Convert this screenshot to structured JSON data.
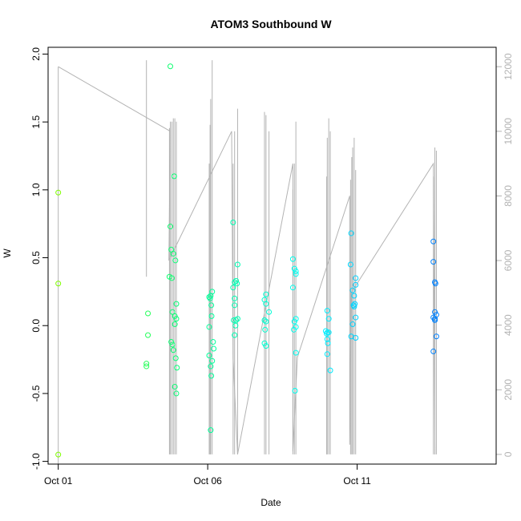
{
  "chart_data": {
    "type": "scatter",
    "title": "ATOM3 Southbound W",
    "xlabel": "Date",
    "ylabel": "W",
    "x_ticks": [
      "Oct 01",
      "Oct 06",
      "Oct 11"
    ],
    "x_ticks_day": [
      1,
      6,
      11
    ],
    "xlim_day": [
      0.66,
      15.65
    ],
    "ylim": [
      -1.02,
      2.05
    ],
    "y_ticks": [
      -1.0,
      -0.5,
      0.0,
      0.5,
      1.0,
      1.5,
      2.0
    ],
    "y_tick_labels": [
      "-1.0",
      "-0.5",
      "0.0",
      "0.5",
      "1.0",
      "1.5",
      "2.0"
    ],
    "right_axis": {
      "ylim": [
        -300,
        12600
      ],
      "ticks": [
        0,
        2000,
        4000,
        6000,
        8000,
        10000,
        12000
      ],
      "tick_labels": [
        "0",
        "2000",
        "4000",
        "6000",
        "8000",
        "10000",
        "12000"
      ],
      "color": "#b3b3b3"
    },
    "grid": false,
    "legend": "none",
    "point_color_scale": [
      "#7fff00",
      "#00ff7f",
      "#00ffff",
      "#0080ff"
    ],
    "points": [
      [
        1.0,
        0.98
      ],
      [
        1.0,
        0.31
      ],
      [
        1.0,
        -0.95
      ],
      [
        4.0,
        0.09
      ],
      [
        4.0,
        -0.07
      ],
      [
        3.95,
        -0.28
      ],
      [
        3.95,
        -0.3
      ],
      [
        4.75,
        1.91
      ],
      [
        4.75,
        0.73
      ],
      [
        4.78,
        0.56
      ],
      [
        4.85,
        0.53
      ],
      [
        4.92,
        0.48
      ],
      [
        4.88,
        1.1
      ],
      [
        4.72,
        0.36
      ],
      [
        4.8,
        0.35
      ],
      [
        4.82,
        0.1
      ],
      [
        4.9,
        0.07
      ],
      [
        4.95,
        0.05
      ],
      [
        4.9,
        0.01
      ],
      [
        4.95,
        0.16
      ],
      [
        4.78,
        -0.12
      ],
      [
        4.82,
        -0.14
      ],
      [
        4.85,
        -0.18
      ],
      [
        4.93,
        -0.24
      ],
      [
        4.97,
        -0.31
      ],
      [
        4.9,
        -0.45
      ],
      [
        4.95,
        -0.5
      ],
      [
        6.05,
        0.21
      ],
      [
        6.1,
        0.22
      ],
      [
        6.15,
        0.25
      ],
      [
        6.05,
        -0.01
      ],
      [
        6.12,
        0.15
      ],
      [
        6.13,
        0.07
      ],
      [
        6.18,
        -0.12
      ],
      [
        6.2,
        -0.17
      ],
      [
        6.05,
        -0.22
      ],
      [
        6.1,
        -0.3
      ],
      [
        6.12,
        -0.37
      ],
      [
        6.1,
        -0.77
      ],
      [
        6.15,
        -0.26
      ],
      [
        6.08,
        0.2
      ],
      [
        6.85,
        0.76
      ],
      [
        6.9,
        0.32
      ],
      [
        6.95,
        0.33
      ],
      [
        7.0,
        0.45
      ],
      [
        6.98,
        0.31
      ],
      [
        6.9,
        0.2
      ],
      [
        6.85,
        0.28
      ],
      [
        6.9,
        0.15
      ],
      [
        6.95,
        0.04
      ],
      [
        7.0,
        0.05
      ],
      [
        6.93,
        0.0
      ],
      [
        6.87,
        0.04
      ],
      [
        6.9,
        -0.07
      ],
      [
        7.95,
        0.23
      ],
      [
        7.9,
        0.19
      ],
      [
        7.95,
        0.16
      ],
      [
        8.05,
        0.1
      ],
      [
        7.9,
        0.04
      ],
      [
        7.95,
        0.03
      ],
      [
        7.92,
        -0.03
      ],
      [
        7.9,
        -0.13
      ],
      [
        7.95,
        -0.15
      ],
      [
        8.85,
        0.49
      ],
      [
        8.9,
        0.42
      ],
      [
        8.95,
        0.4
      ],
      [
        8.95,
        0.38
      ],
      [
        8.85,
        0.28
      ],
      [
        8.95,
        0.05
      ],
      [
        8.9,
        0.03
      ],
      [
        8.88,
        -0.03
      ],
      [
        8.95,
        -0.01
      ],
      [
        8.95,
        -0.2
      ],
      [
        8.92,
        -0.48
      ],
      [
        10.0,
        0.11
      ],
      [
        10.05,
        0.05
      ],
      [
        9.95,
        -0.04
      ],
      [
        10.0,
        -0.05
      ],
      [
        10.05,
        -0.05
      ],
      [
        10.0,
        -0.1
      ],
      [
        10.02,
        -0.13
      ],
      [
        10.0,
        -0.21
      ],
      [
        10.1,
        -0.33
      ],
      [
        9.98,
        -0.06
      ],
      [
        10.8,
        0.68
      ],
      [
        10.78,
        0.45
      ],
      [
        10.95,
        0.35
      ],
      [
        10.95,
        0.3
      ],
      [
        10.85,
        0.26
      ],
      [
        10.9,
        0.22
      ],
      [
        10.92,
        0.16
      ],
      [
        10.88,
        0.15
      ],
      [
        10.9,
        0.14
      ],
      [
        10.95,
        0.06
      ],
      [
        10.85,
        0.01
      ],
      [
        10.8,
        -0.08
      ],
      [
        10.95,
        -0.09
      ],
      [
        10.88,
        0.15
      ],
      [
        13.55,
        0.62
      ],
      [
        13.55,
        0.47
      ],
      [
        13.6,
        0.32
      ],
      [
        13.62,
        0.31
      ],
      [
        13.6,
        0.1
      ],
      [
        13.65,
        0.08
      ],
      [
        13.55,
        0.06
      ],
      [
        13.6,
        0.04
      ],
      [
        13.65,
        -0.08
      ],
      [
        13.55,
        -0.19
      ],
      [
        13.6,
        0.05
      ]
    ],
    "gray_trace": [
      [
        1.0,
        12000
      ],
      [
        4.75,
        10000
      ],
      [
        4.7,
        6000
      ],
      [
        6.8,
        10000
      ],
      [
        6.85,
        3000
      ],
      [
        7.0,
        0
      ],
      [
        8.85,
        9000
      ],
      [
        8.85,
        100
      ],
      [
        9.0,
        3000
      ],
      [
        10.75,
        8000
      ],
      [
        10.75,
        300
      ],
      [
        10.8,
        5000
      ],
      [
        13.55,
        9000
      ],
      [
        13.6,
        0
      ]
    ],
    "gray_bars": [
      [
        1.0,
        -300,
        12000
      ],
      [
        3.95,
        5500,
        12200
      ],
      [
        4.72,
        0,
        10100
      ],
      [
        4.75,
        0,
        10300
      ],
      [
        4.8,
        0,
        10300
      ],
      [
        4.85,
        0,
        10400
      ],
      [
        4.9,
        0,
        10400
      ],
      [
        4.95,
        0,
        10300
      ],
      [
        6.05,
        0,
        9000
      ],
      [
        6.08,
        0,
        10200
      ],
      [
        6.1,
        0,
        11000
      ],
      [
        6.15,
        0,
        12200
      ],
      [
        6.85,
        0,
        9000
      ],
      [
        6.9,
        0,
        10000
      ],
      [
        7.0,
        0,
        10700
      ],
      [
        7.9,
        0,
        10600
      ],
      [
        7.95,
        0,
        10500
      ],
      [
        8.05,
        0,
        10000
      ],
      [
        8.85,
        0,
        8200
      ],
      [
        8.9,
        0,
        9000
      ],
      [
        8.95,
        0,
        10300
      ],
      [
        9.98,
        0,
        8600
      ],
      [
        10.0,
        0,
        9800
      ],
      [
        10.05,
        0,
        10400
      ],
      [
        10.1,
        0,
        10000
      ],
      [
        10.78,
        0,
        8500
      ],
      [
        10.82,
        0,
        9200
      ],
      [
        10.85,
        0,
        9500
      ],
      [
        10.9,
        0,
        9800
      ],
      [
        10.95,
        0,
        8800
      ],
      [
        13.55,
        0,
        8600
      ],
      [
        13.6,
        0,
        9500
      ],
      [
        13.65,
        0,
        9400
      ]
    ]
  }
}
